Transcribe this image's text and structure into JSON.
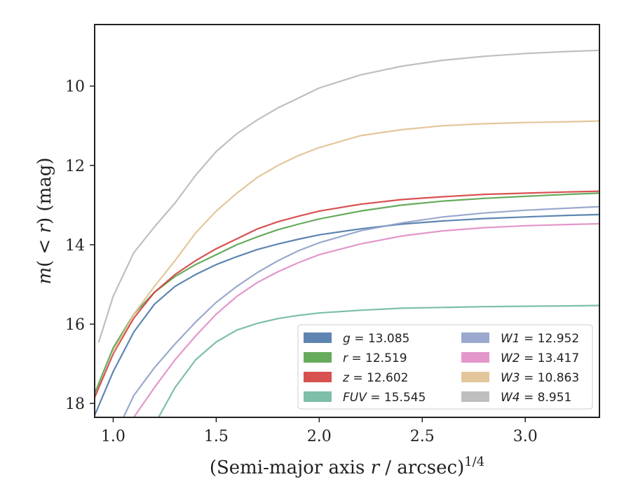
{
  "chart_data": {
    "type": "line",
    "xlabel": "(Semi-major axis r / arcsec)1/4",
    "xlabel_parts": {
      "pre": "(Semi-major axis ",
      "var": "r",
      "post": " / arcsec)",
      "sup": "1/4"
    },
    "ylabel": "m(< r) (mag)",
    "ylabel_parts": {
      "m": "m",
      "open": "(",
      "lt": " < ",
      "r": "r",
      "close": ")",
      "unit": " (mag)"
    },
    "xlim": [
      0.91,
      3.36
    ],
    "ylim": [
      18.35,
      8.45
    ],
    "y_inverted": true,
    "x_ticks": [
      "1.0",
      "1.5",
      "2.0",
      "2.5",
      "3.0"
    ],
    "y_ticks": [
      "10",
      "12",
      "14",
      "16",
      "18"
    ],
    "grid": false,
    "legend_position": "lower-right",
    "series": [
      {
        "name": "g",
        "label": "g = 13.085",
        "color": "#4c78a8",
        "x": [
          0.91,
          1.0,
          1.1,
          1.2,
          1.3,
          1.4,
          1.5,
          1.6,
          1.7,
          1.8,
          1.9,
          2.0,
          2.2,
          2.4,
          2.6,
          2.8,
          3.0,
          3.2,
          3.36
        ],
        "y": [
          18.3,
          17.2,
          16.2,
          15.5,
          15.05,
          14.75,
          14.5,
          14.3,
          14.12,
          13.98,
          13.86,
          13.75,
          13.6,
          13.48,
          13.4,
          13.34,
          13.3,
          13.26,
          13.24
        ]
      },
      {
        "name": "r",
        "label": "r = 12.519",
        "color": "#55a24a",
        "x": [
          0.91,
          1.0,
          1.1,
          1.2,
          1.3,
          1.4,
          1.5,
          1.6,
          1.7,
          1.8,
          1.9,
          2.0,
          2.2,
          2.4,
          2.6,
          2.8,
          3.0,
          3.2,
          3.36
        ],
        "y": [
          17.75,
          16.6,
          15.75,
          15.2,
          14.8,
          14.5,
          14.25,
          14.0,
          13.8,
          13.62,
          13.48,
          13.35,
          13.15,
          13.0,
          12.9,
          12.83,
          12.78,
          12.73,
          12.7
        ]
      },
      {
        "name": "z",
        "label": "z = 12.602",
        "color": "#d43e3e",
        "x": [
          0.91,
          1.0,
          1.1,
          1.2,
          1.3,
          1.4,
          1.5,
          1.6,
          1.7,
          1.8,
          1.9,
          2.0,
          2.2,
          2.4,
          2.6,
          2.8,
          3.0,
          3.2,
          3.36
        ],
        "y": [
          17.85,
          16.75,
          15.85,
          15.2,
          14.75,
          14.4,
          14.1,
          13.85,
          13.6,
          13.42,
          13.28,
          13.15,
          12.98,
          12.86,
          12.79,
          12.73,
          12.7,
          12.67,
          12.65
        ]
      },
      {
        "name": "FUV",
        "label": "FUV = 15.545",
        "color": "#6fb8a0",
        "x": [
          1.22,
          1.3,
          1.4,
          1.5,
          1.6,
          1.7,
          1.8,
          1.9,
          2.0,
          2.2,
          2.4,
          2.6,
          2.8,
          3.0,
          3.2,
          3.36
        ],
        "y": [
          18.35,
          17.6,
          16.9,
          16.45,
          16.15,
          15.98,
          15.86,
          15.78,
          15.72,
          15.65,
          15.6,
          15.58,
          15.56,
          15.55,
          15.54,
          15.53
        ]
      },
      {
        "name": "W1",
        "label": "W1 = 12.952",
        "color": "#8fa0c8",
        "x": [
          1.05,
          1.1,
          1.2,
          1.3,
          1.4,
          1.5,
          1.6,
          1.7,
          1.8,
          1.9,
          2.0,
          2.2,
          2.4,
          2.6,
          2.8,
          3.0,
          3.2,
          3.36
        ],
        "y": [
          18.35,
          17.8,
          17.1,
          16.5,
          15.95,
          15.45,
          15.05,
          14.7,
          14.4,
          14.15,
          13.95,
          13.65,
          13.45,
          13.3,
          13.2,
          13.13,
          13.08,
          13.04
        ]
      },
      {
        "name": "W2",
        "label": "W2 = 13.417",
        "color": "#e08cc4",
        "x": [
          1.1,
          1.2,
          1.3,
          1.4,
          1.5,
          1.6,
          1.7,
          1.8,
          1.9,
          2.0,
          2.2,
          2.4,
          2.6,
          2.8,
          3.0,
          3.2,
          3.36
        ],
        "y": [
          18.35,
          17.6,
          16.9,
          16.3,
          15.75,
          15.3,
          14.95,
          14.68,
          14.45,
          14.25,
          13.98,
          13.78,
          13.65,
          13.57,
          13.52,
          13.49,
          13.47
        ]
      },
      {
        "name": "W3",
        "label": "W3 = 10.863",
        "color": "#e0c090",
        "x": [
          1.0,
          1.1,
          1.2,
          1.3,
          1.4,
          1.5,
          1.6,
          1.7,
          1.8,
          1.9,
          2.0,
          2.2,
          2.4,
          2.6,
          2.8,
          3.0,
          3.2,
          3.36
        ],
        "y": [
          16.7,
          15.75,
          15.05,
          14.4,
          13.7,
          13.15,
          12.7,
          12.3,
          12.0,
          11.75,
          11.55,
          11.25,
          11.1,
          11.0,
          10.95,
          10.92,
          10.9,
          10.88
        ]
      },
      {
        "name": "W4",
        "label": "W4 = 8.951",
        "color": "#b8b8b8",
        "x": [
          0.93,
          1.0,
          1.1,
          1.2,
          1.3,
          1.4,
          1.5,
          1.6,
          1.7,
          1.8,
          1.9,
          2.0,
          2.2,
          2.4,
          2.6,
          2.8,
          3.0,
          3.2,
          3.36
        ],
        "y": [
          16.45,
          15.3,
          14.2,
          13.55,
          12.95,
          12.25,
          11.65,
          11.2,
          10.85,
          10.55,
          10.3,
          10.05,
          9.72,
          9.5,
          9.35,
          9.25,
          9.18,
          9.13,
          9.1
        ]
      }
    ]
  }
}
